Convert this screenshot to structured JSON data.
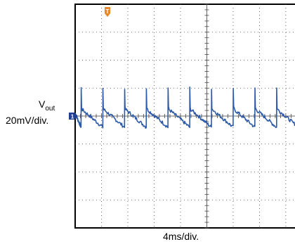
{
  "chart_data": {
    "type": "line",
    "title": "",
    "ylabel": "V",
    "ylabel_subscript": "out",
    "ylabel_scale": "20mV/div.",
    "xlabel": "4ms/div.",
    "x_divisions": 10,
    "y_divisions": 8,
    "ylim": [
      -80,
      80
    ],
    "xlim": [
      0,
      40
    ],
    "grid": true,
    "colors": {
      "trace": "#2d5aa8",
      "trigger": "#e8872c",
      "channel_marker": "#1f3f8f",
      "grid": "#444444"
    },
    "series": [
      {
        "name": "",
        "ripple_period": 3.3,
        "spike_times": [
          0.9,
          4.2,
          7.5,
          10.8,
          14.1,
          17.4,
          20.7,
          24.0,
          27.3,
          30.6,
          33.9,
          37.2
        ],
        "spike_peak": 20,
        "dip_low": -8,
        "baseline": 0
      }
    ],
    "markers": {
      "trigger_label": "T",
      "channel_label": "1"
    }
  }
}
